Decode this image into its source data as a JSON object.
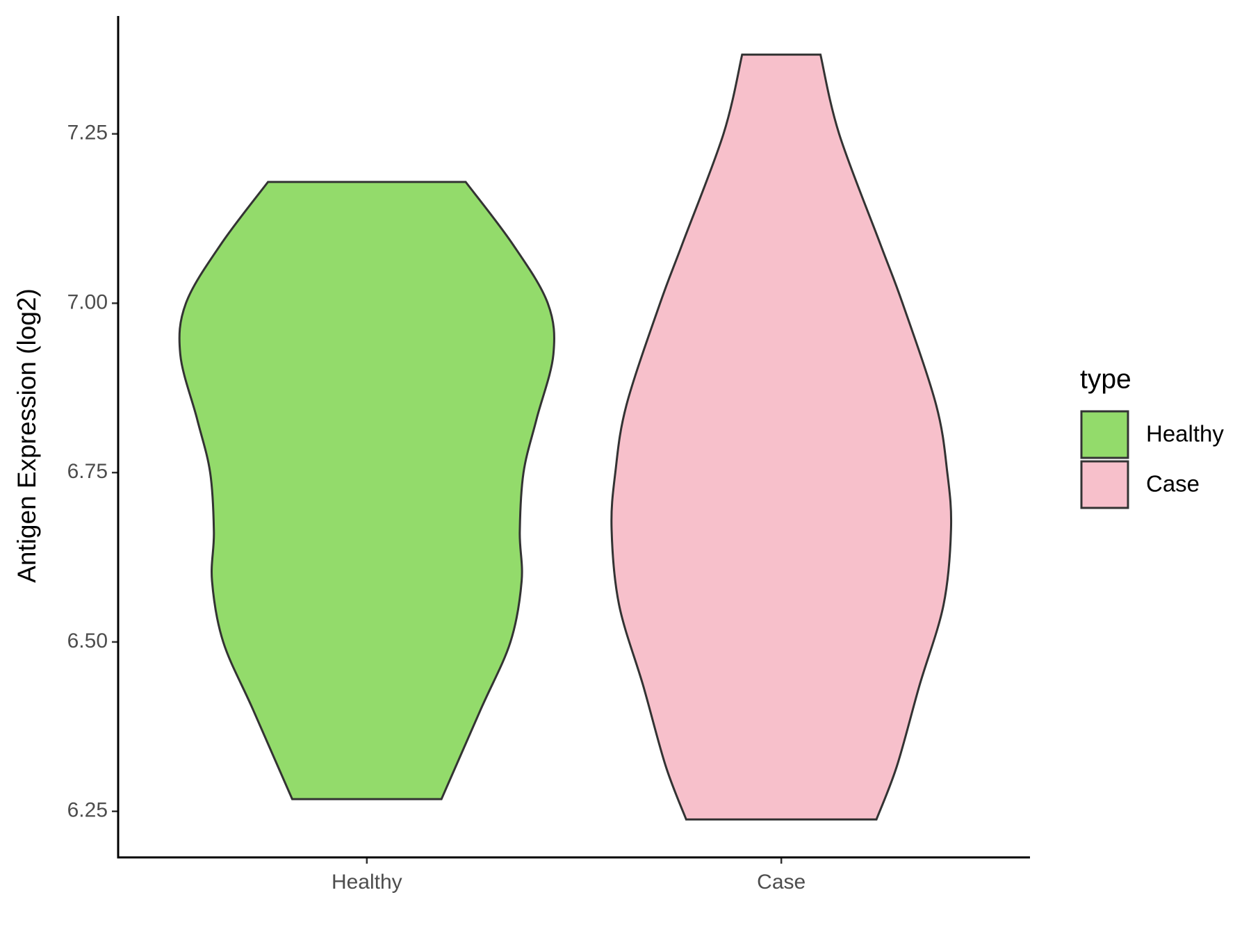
{
  "chart_data": {
    "type": "violin",
    "y_label": "Antigen Expression (log2)",
    "categories": [
      "Healthy",
      "Case"
    ],
    "legend_title": "type",
    "series": [
      {
        "name": "Healthy",
        "color": "#93db6b",
        "y": [
          6.268,
          6.4,
          6.5,
          6.59,
          6.662,
          6.75,
          6.829,
          6.924,
          7.0,
          7.088,
          7.179
        ],
        "density": [
          0.4,
          0.61,
          0.77,
          0.83,
          0.82,
          0.84,
          0.91,
          1.0,
          0.97,
          0.78,
          0.53
        ]
      },
      {
        "name": "Case",
        "color": "#f7c0cb",
        "y": [
          6.238,
          6.317,
          6.435,
          6.555,
          6.667,
          6.75,
          6.85,
          7.0,
          7.088,
          7.25,
          7.367
        ],
        "density": [
          0.51,
          0.62,
          0.74,
          0.87,
          0.91,
          0.89,
          0.83,
          0.65,
          0.53,
          0.31,
          0.21
        ]
      }
    ],
    "ylim": [
      6.182,
      7.424
    ],
    "yticks": [
      {
        "value": 6.25,
        "label": "6.25"
      },
      {
        "value": 6.5,
        "label": "6.50"
      },
      {
        "value": 6.75,
        "label": "6.75"
      },
      {
        "value": 7.0,
        "label": "7.00"
      },
      {
        "value": 7.25,
        "label": "7.25"
      }
    ],
    "legend_position": "right"
  }
}
